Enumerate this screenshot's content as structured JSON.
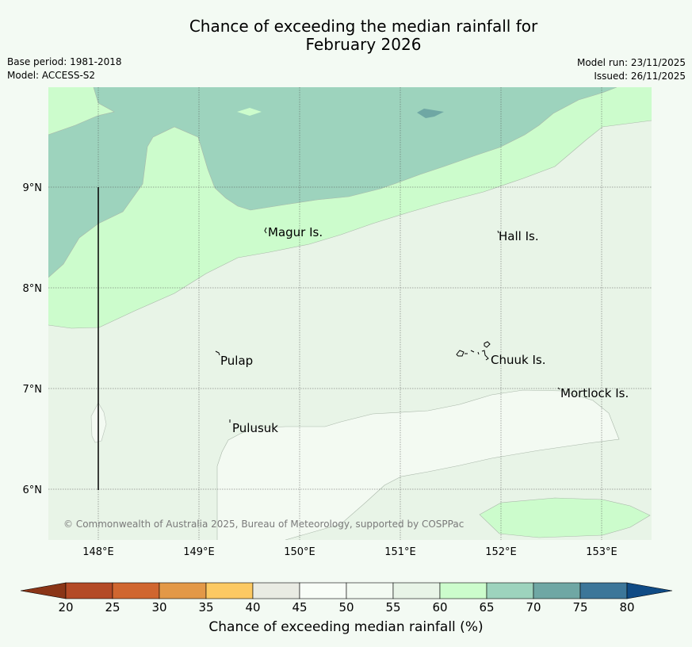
{
  "header": {
    "title_line1": "Chance of exceeding the median rainfall for",
    "title_line2": "February 2026",
    "base_period": "Base period: 1981-2018",
    "model": "Model: ACCESS-S2",
    "model_run": "Model run: 23/11/2025",
    "issued": "Issued: 26/11/2025"
  },
  "map": {
    "lon_ticks": [
      "148°E",
      "149°E",
      "150°E",
      "151°E",
      "152°E",
      "153°E"
    ],
    "lat_ticks": [
      "9°N",
      "8°N",
      "7°N",
      "6°N"
    ],
    "places": {
      "magur": "Magur Is.",
      "hall": "Hall Is.",
      "pulap": "Pulap",
      "chuuk": "Chuuk Is.",
      "mortlock": "Mortlock Is.",
      "pulusuk": "Pulusuk"
    },
    "copyright": "© Commonwealth of Australia 2025, Bureau of Meteorology, supported by COSPPac"
  },
  "colorbar": {
    "title": "Chance of exceeding median rainfall (%)",
    "ticks": [
      "20",
      "25",
      "30",
      "35",
      "40",
      "45",
      "50",
      "55",
      "60",
      "65",
      "70",
      "75",
      "80"
    ],
    "colors": {
      "under": "#8a3517",
      "c20_25": "#b44a26",
      "c25_30": "#d0662f",
      "c30_35": "#e39847",
      "c35_40": "#fcc962",
      "c40_45": "#e9ebe3",
      "c45_50": "#f8fdf7",
      "c50_55": "#f3faf2",
      "c55_60": "#e8f4e7",
      "c60_65": "#ccfccc",
      "c65_70": "#9dd3bd",
      "c70_75": "#6fa7a4",
      "c75_80": "#3c7699",
      "over": "#104b85"
    }
  }
}
